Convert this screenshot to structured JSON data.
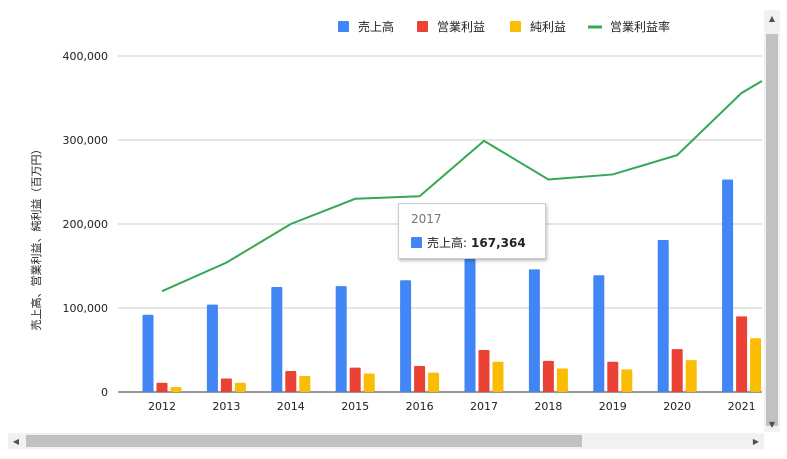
{
  "chart_data": {
    "type": "bar+line",
    "categories": [
      "2012",
      "2013",
      "2014",
      "2015",
      "2016",
      "2017",
      "2018",
      "2019",
      "2020",
      "2021"
    ],
    "series": [
      {
        "name": "売上高",
        "type": "bar",
        "color": "#4285f4",
        "values": [
          92000,
          104000,
          125000,
          126000,
          133000,
          167364,
          146000,
          139000,
          181000,
          253000
        ]
      },
      {
        "name": "営業利益",
        "type": "bar",
        "color": "#ea4335",
        "values": [
          11000,
          16000,
          25000,
          29000,
          31000,
          50000,
          37000,
          36000,
          51000,
          90000
        ]
      },
      {
        "name": "純利益",
        "type": "bar",
        "color": "#fbbc04",
        "values": [
          6000,
          11000,
          19000,
          22000,
          23000,
          36000,
          28000,
          27000,
          38000,
          64000
        ]
      },
      {
        "name": "営業利益率",
        "type": "line",
        "color": "#34a853",
        "values": [
          0.12,
          0.154,
          0.2,
          0.23,
          0.233,
          0.299,
          0.253,
          0.259,
          0.282,
          0.356
        ]
      }
    ],
    "ylabel": "売上高、営業利益、純利益（百万円）",
    "ylim": [
      0,
      400000
    ],
    "yticks": [
      "0",
      "100,000",
      "200,000",
      "300,000",
      "400,000"
    ],
    "grid": true,
    "legend": "top"
  },
  "tooltip": {
    "year": "2017",
    "label": "売上高:",
    "value": "167,364",
    "color": "#4285f4"
  },
  "scrollbar": {
    "up_arrow": "▲",
    "down_arrow": "▼",
    "left_arrow": "◀",
    "right_arrow": "▶"
  }
}
